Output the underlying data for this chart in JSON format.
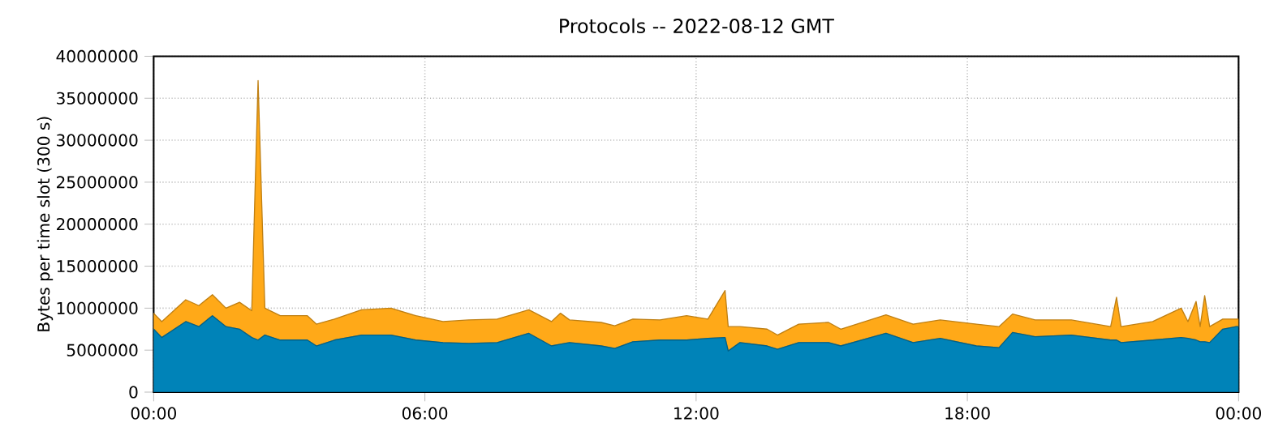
{
  "chart_data": {
    "type": "area",
    "title": "Protocols -- 2022-08-12 GMT",
    "ylabel": "Bytes per time slot (300 s)",
    "stacked": true,
    "grid": true,
    "x": [
      0,
      0.18,
      0.71,
      1.0,
      1.3,
      1.6,
      1.9,
      2.17,
      2.31,
      2.46,
      2.8,
      3.4,
      3.6,
      4.0,
      4.6,
      5.25,
      5.8,
      6.4,
      6.97,
      7.6,
      8.3,
      8.8,
      9.0,
      9.2,
      9.9,
      10.2,
      10.6,
      11.2,
      11.79,
      12.26,
      12.64,
      12.71,
      12.97,
      13.57,
      13.8,
      14.27,
      14.93,
      15.2,
      16.2,
      16.8,
      17.4,
      18.2,
      18.7,
      19.0,
      19.5,
      20.3,
      21.17,
      21.3,
      21.4,
      22.1,
      22.73,
      22.88,
      23.06,
      23.15,
      23.25,
      23.36,
      23.65,
      23.95,
      24
    ],
    "series": [
      {
        "color": "#0083b8",
        "values": [
          7500000,
          6500000,
          8400000,
          7800000,
          9100000,
          7800000,
          7500000,
          6500000,
          6200000,
          6800000,
          6200000,
          6200000,
          5500000,
          6200000,
          6800000,
          6800000,
          6200000,
          5900000,
          5800000,
          5900000,
          7000000,
          5500000,
          5700000,
          5900000,
          5500000,
          5200000,
          6000000,
          6200000,
          6200000,
          6400000,
          6500000,
          4900000,
          5900000,
          5500000,
          5100000,
          5900000,
          5900000,
          5500000,
          7000000,
          5900000,
          6400000,
          5500000,
          5300000,
          7100000,
          6600000,
          6800000,
          6200000,
          6200000,
          5900000,
          6200000,
          6500000,
          6400000,
          6200000,
          6000000,
          6000000,
          5900000,
          7500000,
          7800000,
          7800000
        ]
      },
      {
        "color": "#ffa918",
        "values": [
          1900000,
          1900000,
          2600000,
          2500000,
          2500000,
          2200000,
          3200000,
          3200000,
          30900000,
          3200000,
          2900000,
          2900000,
          2600000,
          2500000,
          3000000,
          3200000,
          2900000,
          2500000,
          2800000,
          2800000,
          2800000,
          2900000,
          3700000,
          2700000,
          2800000,
          2700000,
          2700000,
          2400000,
          2900000,
          2300000,
          5600000,
          2900000,
          1900000,
          2000000,
          1700000,
          2200000,
          2400000,
          2000000,
          2200000,
          2200000,
          2200000,
          2600000,
          2500000,
          2200000,
          2000000,
          1800000,
          1600000,
          5100000,
          1900000,
          2200000,
          3500000,
          2000000,
          4600000,
          1800000,
          5500000,
          1900000,
          1200000,
          900000,
          900000
        ]
      }
    ],
    "xlim": [
      0,
      24
    ],
    "xticks": [
      {
        "value": 0,
        "label": "00:00"
      },
      {
        "value": 6,
        "label": "06:00"
      },
      {
        "value": 12,
        "label": "12:00"
      },
      {
        "value": 18,
        "label": "18:00"
      },
      {
        "value": 24,
        "label": "00:00"
      }
    ],
    "ylim": [
      0,
      40000000
    ],
    "yticks": [
      0,
      5000000,
      10000000,
      15000000,
      20000000,
      25000000,
      30000000,
      35000000,
      40000000
    ]
  }
}
